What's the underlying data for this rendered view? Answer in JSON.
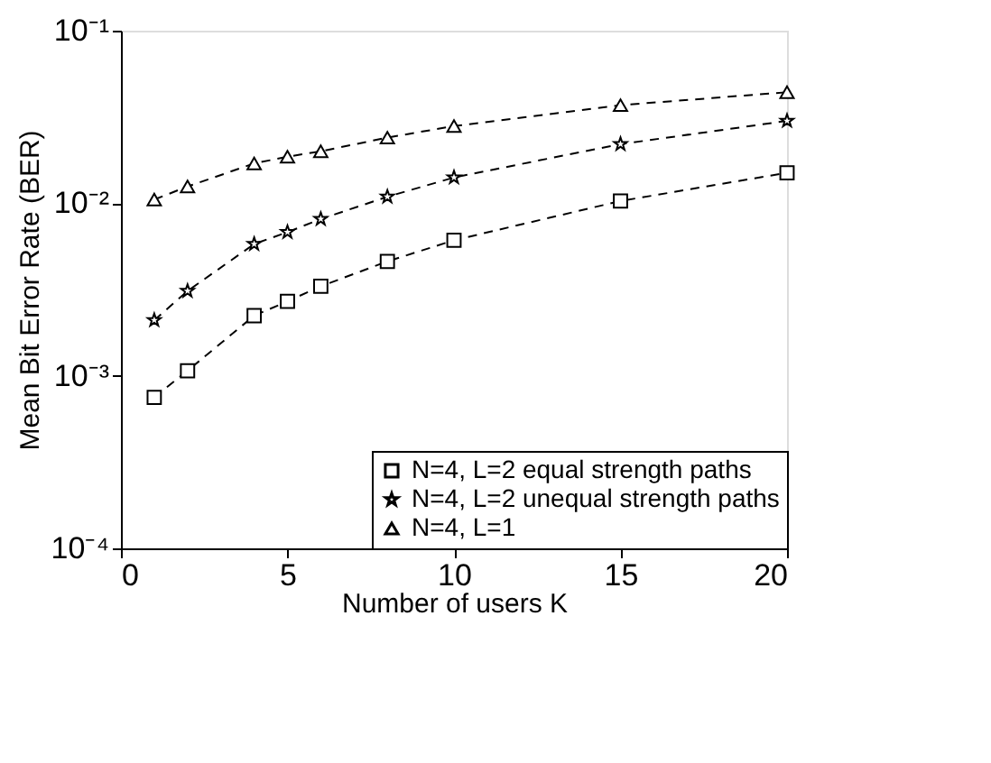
{
  "chart_data": {
    "type": "line",
    "xlabel": "Number of users K",
    "ylabel": "Mean Bit Error Rate (BER)",
    "x": [
      1,
      2,
      4,
      5,
      6,
      8,
      10,
      15,
      20
    ],
    "series": [
      {
        "name": "N=4, L=2 equal strength paths",
        "color": "#000000",
        "marker": "square",
        "values": [
          0.00075,
          0.00107,
          0.00223,
          0.0027,
          0.0033,
          0.0046,
          0.0061,
          0.0103,
          0.015
        ]
      },
      {
        "name": "N=4, L=2 unequal strength paths",
        "color": "#000000",
        "marker": "star",
        "values": [
          0.0021,
          0.0031,
          0.0058,
          0.0068,
          0.0081,
          0.0109,
          0.0141,
          0.022,
          0.03
        ]
      },
      {
        "name": "N=4, L=1",
        "color": "#000000",
        "marker": "triangle",
        "values": [
          0.0105,
          0.0125,
          0.017,
          0.0186,
          0.02,
          0.024,
          0.028,
          0.037,
          0.044
        ]
      }
    ],
    "log": "y",
    "xlim": [
      0,
      20
    ],
    "xticks": [
      0,
      5,
      10,
      15,
      20
    ],
    "ylim": [
      0.0001,
      0.1
    ],
    "yticks": [
      {
        "value": 0.0001,
        "label": "10⁻⁴"
      },
      {
        "value": 0.001,
        "label": "10⁻³"
      },
      {
        "value": 0.01,
        "label": "10⁻²"
      },
      {
        "value": 0.1,
        "label": "10⁻¹"
      }
    ],
    "line_style": "dashed",
    "grid": false,
    "legend": "bottom right"
  }
}
